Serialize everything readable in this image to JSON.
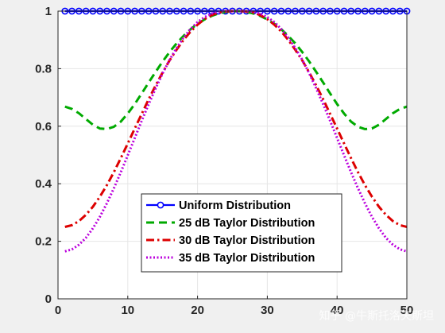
{
  "chart_data": {
    "type": "line",
    "xlim": [
      0,
      50
    ],
    "ylim": [
      0,
      1
    ],
    "xticks": [
      "0",
      "10",
      "20",
      "30",
      "40",
      "50"
    ],
    "yticks": [
      "0",
      "0.2",
      "0.4",
      "0.6",
      "0.8",
      "1"
    ],
    "grid": true,
    "legend_position": "bottom-center",
    "x": [
      1,
      2,
      3,
      4,
      5,
      6,
      7,
      8,
      9,
      10,
      11,
      12,
      13,
      14,
      15,
      16,
      17,
      18,
      19,
      20,
      21,
      22,
      23,
      24,
      25,
      26,
      27,
      28,
      29,
      30,
      31,
      32,
      33,
      34,
      35,
      36,
      37,
      38,
      39,
      40,
      41,
      42,
      43,
      44,
      45,
      46,
      47,
      48,
      49,
      50
    ],
    "series": [
      {
        "name": "Uniform Distribution",
        "color": "#0000ff",
        "style": "solid-circle",
        "values": [
          1,
          1,
          1,
          1,
          1,
          1,
          1,
          1,
          1,
          1,
          1,
          1,
          1,
          1,
          1,
          1,
          1,
          1,
          1,
          1,
          1,
          1,
          1,
          1,
          1,
          1,
          1,
          1,
          1,
          1,
          1,
          1,
          1,
          1,
          1,
          1,
          1,
          1,
          1,
          1,
          1,
          1,
          1,
          1,
          1,
          1,
          1,
          1,
          1,
          1
        ]
      },
      {
        "name": "25 dB Taylor Distribution",
        "color": "#00aa00",
        "style": "dashed",
        "values": [
          0.668,
          0.66,
          0.645,
          0.625,
          0.605,
          0.592,
          0.59,
          0.598,
          0.616,
          0.644,
          0.677,
          0.714,
          0.752,
          0.789,
          0.825,
          0.858,
          0.888,
          0.914,
          0.937,
          0.956,
          0.971,
          0.983,
          0.992,
          0.997,
          1.0,
          1.0,
          0.997,
          0.992,
          0.983,
          0.971,
          0.956,
          0.937,
          0.914,
          0.888,
          0.858,
          0.825,
          0.789,
          0.752,
          0.714,
          0.677,
          0.644,
          0.616,
          0.598,
          0.59,
          0.592,
          0.605,
          0.625,
          0.645,
          0.66,
          0.668
        ]
      },
      {
        "name": "30 dB Taylor Distribution",
        "color": "#dd0000",
        "style": "dash-dot",
        "values": [
          0.25,
          0.256,
          0.27,
          0.292,
          0.32,
          0.355,
          0.395,
          0.44,
          0.489,
          0.54,
          0.592,
          0.643,
          0.694,
          0.742,
          0.787,
          0.829,
          0.866,
          0.9,
          0.929,
          0.953,
          0.972,
          0.986,
          0.995,
          0.999,
          1.0,
          1.0,
          0.999,
          0.995,
          0.986,
          0.972,
          0.953,
          0.929,
          0.9,
          0.866,
          0.829,
          0.787,
          0.742,
          0.694,
          0.643,
          0.592,
          0.54,
          0.489,
          0.44,
          0.395,
          0.355,
          0.32,
          0.292,
          0.27,
          0.256,
          0.25
        ]
      },
      {
        "name": "35 dB Taylor Distribution",
        "color": "#bb00dd",
        "style": "dotted",
        "values": [
          0.165,
          0.172,
          0.188,
          0.212,
          0.245,
          0.285,
          0.332,
          0.384,
          0.44,
          0.499,
          0.559,
          0.619,
          0.677,
          0.732,
          0.784,
          0.831,
          0.872,
          0.908,
          0.938,
          0.962,
          0.979,
          0.991,
          0.998,
          1.0,
          1.0,
          1.0,
          1.0,
          0.998,
          0.991,
          0.979,
          0.962,
          0.938,
          0.908,
          0.872,
          0.831,
          0.784,
          0.732,
          0.677,
          0.619,
          0.559,
          0.499,
          0.44,
          0.384,
          0.332,
          0.285,
          0.245,
          0.212,
          0.188,
          0.172,
          0.165
        ]
      }
    ]
  },
  "watermark": "知乎 @牛斯托洛夫斯坦"
}
